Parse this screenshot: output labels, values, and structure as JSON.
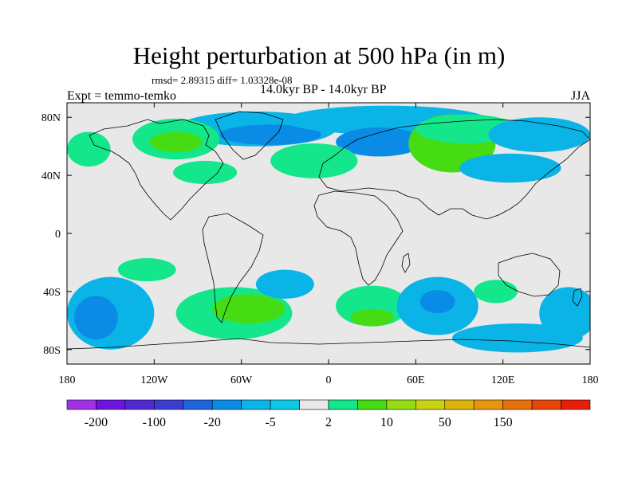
{
  "figure": {
    "title": "Height perturbation at 500 hPa (in m)",
    "stats": "rmsd= 2.89315 diff= 1.03328e-08",
    "left_label": "Expt = temmo-temko",
    "center_label": "14.0kyr BP - 14.0kyr BP",
    "right_label": "JJA"
  },
  "map": {
    "projection": "cylindrical-equidistant",
    "lon_range": [
      -180,
      180
    ],
    "lat_range": [
      -90,
      90
    ],
    "x_ticks": [
      {
        "lon": -180,
        "label": "180"
      },
      {
        "lon": -120,
        "label": "120W"
      },
      {
        "lon": -60,
        "label": "60W"
      },
      {
        "lon": 0,
        "label": "0"
      },
      {
        "lon": 60,
        "label": "60E"
      },
      {
        "lon": 120,
        "label": "120E"
      },
      {
        "lon": 180,
        "label": "180"
      }
    ],
    "y_ticks": [
      {
        "lat": 80,
        "label": "80N"
      },
      {
        "lat": 40,
        "label": "40N"
      },
      {
        "lat": 0,
        "label": "0"
      },
      {
        "lat": -40,
        "label": "40S"
      },
      {
        "lat": -80,
        "label": "80S"
      }
    ],
    "background_color": "#e8e8e8",
    "coast_color": "#000000",
    "regions": [
      {
        "name": "nh-greenland-low",
        "lon": -50,
        "lat": 72,
        "rx_deg": 55,
        "ry_deg": 12,
        "color": "#0ab4e6"
      },
      {
        "name": "nh-greenland-deep",
        "lon": -40,
        "lat": 68,
        "rx_deg": 35,
        "ry_deg": 7,
        "color": "#0a8ce6"
      },
      {
        "name": "nh-arctic-low",
        "lon": 40,
        "lat": 78,
        "rx_deg": 70,
        "ry_deg": 10,
        "color": "#0ab4e6"
      },
      {
        "name": "nh-scandinavia-low",
        "lon": 35,
        "lat": 63,
        "rx_deg": 30,
        "ry_deg": 10,
        "color": "#0a8ce6"
      },
      {
        "name": "nh-siberia-high",
        "lon": 85,
        "lat": 62,
        "rx_deg": 30,
        "ry_deg": 20,
        "color": "#46dc14"
      },
      {
        "name": "nh-siberia-rim",
        "lon": 95,
        "lat": 72,
        "rx_deg": 35,
        "ry_deg": 10,
        "color": "#14e68c"
      },
      {
        "name": "nh-pacific-low",
        "lon": 145,
        "lat": 68,
        "rx_deg": 35,
        "ry_deg": 12,
        "color": "#0ab4e6"
      },
      {
        "name": "nh-na-high",
        "lon": -105,
        "lat": 65,
        "rx_deg": 30,
        "ry_deg": 14,
        "color": "#14e68c"
      },
      {
        "name": "nh-na-high-core",
        "lon": -105,
        "lat": 63,
        "rx_deg": 18,
        "ry_deg": 7,
        "color": "#46dc14"
      },
      {
        "name": "nh-atlantic-high",
        "lon": -5,
        "lat": 48,
        "rx_deg": 22,
        "ry_deg": 9,
        "color": "#46dc14"
      },
      {
        "name": "nh-atlantic-rim",
        "lon": -10,
        "lat": 50,
        "rx_deg": 30,
        "ry_deg": 12,
        "color": "#14e68c"
      },
      {
        "name": "nh-us-high",
        "lon": -85,
        "lat": 42,
        "rx_deg": 22,
        "ry_deg": 8,
        "color": "#14e68c"
      },
      {
        "name": "nh-asia-low",
        "lon": 125,
        "lat": 45,
        "rx_deg": 35,
        "ry_deg": 10,
        "color": "#0ab4e6"
      },
      {
        "name": "nh-pacific-high",
        "lon": -165,
        "lat": 58,
        "rx_deg": 15,
        "ry_deg": 12,
        "color": "#14e68c"
      },
      {
        "name": "sh-southpac-low",
        "lon": -150,
        "lat": -55,
        "rx_deg": 30,
        "ry_deg": 25,
        "color": "#0ab4e6"
      },
      {
        "name": "sh-southpac-deep",
        "lon": -160,
        "lat": -58,
        "rx_deg": 15,
        "ry_deg": 15,
        "color": "#0a8ce6"
      },
      {
        "name": "sh-pac-high",
        "lon": -125,
        "lat": -25,
        "rx_deg": 20,
        "ry_deg": 8,
        "color": "#14e68c"
      },
      {
        "name": "sh-samerica-high",
        "lon": -65,
        "lat": -55,
        "rx_deg": 40,
        "ry_deg": 18,
        "color": "#14e68c"
      },
      {
        "name": "sh-samerica-core",
        "lon": -55,
        "lat": -52,
        "rx_deg": 25,
        "ry_deg": 10,
        "color": "#46dc14"
      },
      {
        "name": "sh-atlantic-low",
        "lon": -30,
        "lat": -35,
        "rx_deg": 20,
        "ry_deg": 10,
        "color": "#0ab4e6"
      },
      {
        "name": "sh-africa-high",
        "lon": 30,
        "lat": -50,
        "rx_deg": 25,
        "ry_deg": 14,
        "color": "#14e68c"
      },
      {
        "name": "sh-africa-core",
        "lon": 30,
        "lat": -58,
        "rx_deg": 15,
        "ry_deg": 6,
        "color": "#46dc14"
      },
      {
        "name": "sh-indian-low",
        "lon": 75,
        "lat": -50,
        "rx_deg": 28,
        "ry_deg": 20,
        "color": "#0ab4e6"
      },
      {
        "name": "sh-indian-deep",
        "lon": 75,
        "lat": -47,
        "rx_deg": 12,
        "ry_deg": 8,
        "color": "#0a8ce6"
      },
      {
        "name": "sh-australia-high",
        "lon": 115,
        "lat": -40,
        "rx_deg": 15,
        "ry_deg": 8,
        "color": "#14e68c"
      },
      {
        "name": "sh-tasman-low",
        "lon": 165,
        "lat": -55,
        "rx_deg": 20,
        "ry_deg": 18,
        "color": "#0ab4e6"
      },
      {
        "name": "sh-antarctic-low",
        "lon": 130,
        "lat": -72,
        "rx_deg": 45,
        "ry_deg": 10,
        "color": "#0ab4e6"
      }
    ]
  },
  "colorbar": {
    "colors": [
      "#a032e6",
      "#6e14dc",
      "#5028d2",
      "#3c3cd2",
      "#1e64dc",
      "#0a8ce6",
      "#0ab4e6",
      "#0ac8e6",
      "#e8e8e8",
      "#14e68c",
      "#46dc14",
      "#96dc14",
      "#c8d214",
      "#dcb40a",
      "#e6960a",
      "#e6700a",
      "#e6460a",
      "#e61e0a"
    ],
    "labels": [
      {
        "boundary": 1,
        "text": "-200"
      },
      {
        "boundary": 3,
        "text": "-100"
      },
      {
        "boundary": 5,
        "text": "-20"
      },
      {
        "boundary": 7,
        "text": "-5"
      },
      {
        "boundary": 9,
        "text": "2"
      },
      {
        "boundary": 11,
        "text": "10"
      },
      {
        "boundary": 13,
        "text": "50"
      },
      {
        "boundary": 15,
        "text": "150"
      }
    ]
  }
}
